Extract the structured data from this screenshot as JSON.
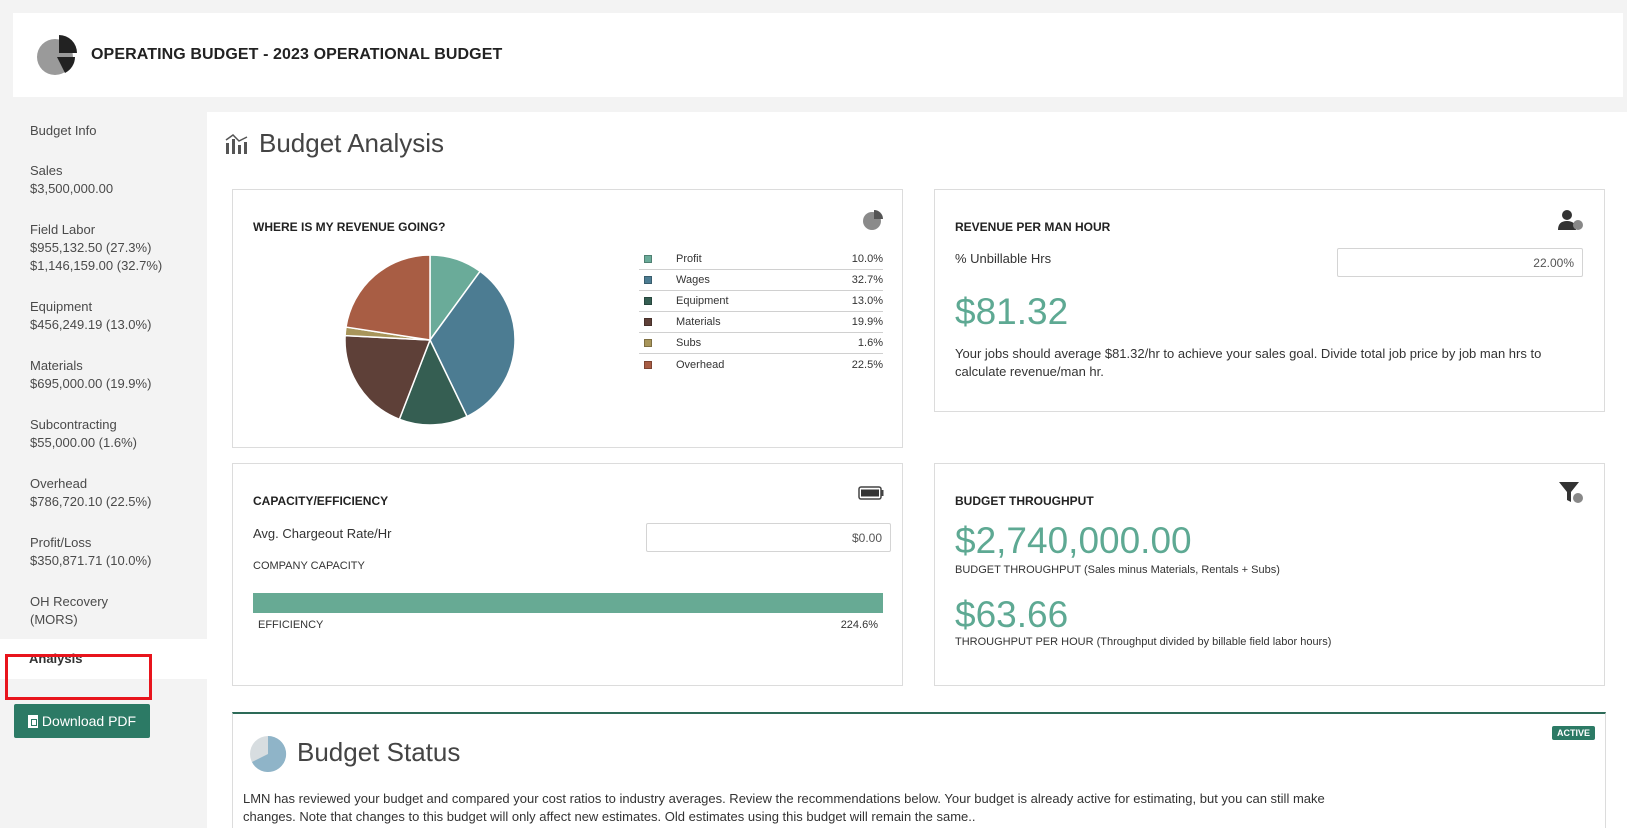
{
  "header": {
    "title": "OPERATING BUDGET - 2023 OPERATIONAL BUDGET"
  },
  "sidebar": {
    "items": [
      {
        "label": "Budget Info"
      },
      {
        "label": "Sales",
        "values": [
          "$3,500,000.00"
        ]
      },
      {
        "label": "Field Labor",
        "values": [
          "$955,132.50 (27.3%)",
          "$1,146,159.00 (32.7%)"
        ]
      },
      {
        "label": "Equipment",
        "values": [
          "$456,249.19 (13.0%)"
        ]
      },
      {
        "label": "Materials",
        "values": [
          "$695,000.00 (19.9%)"
        ]
      },
      {
        "label": "Subcontracting",
        "values": [
          "$55,000.00 (1.6%)"
        ]
      },
      {
        "label": "Overhead",
        "values": [
          "$786,720.10 (22.5%)"
        ]
      },
      {
        "label": "Profit/Loss",
        "values": [
          "$350,871.71 (10.0%)"
        ]
      },
      {
        "label": "OH Recovery",
        "values": [
          "(MORS)"
        ]
      }
    ],
    "active": "Analysis",
    "download_label": "Download PDF"
  },
  "main": {
    "title": "Budget Analysis",
    "revenue_card": {
      "title": "WHERE IS MY REVENUE GOING?",
      "legend": [
        {
          "name": "Profit",
          "pct": "10.0%",
          "color": "#6aab99"
        },
        {
          "name": "Wages",
          "pct": "32.7%",
          "color": "#4c7c92"
        },
        {
          "name": "Equipment",
          "pct": "13.0%",
          "color": "#355e52"
        },
        {
          "name": "Materials",
          "pct": "19.9%",
          "color": "#5e4038"
        },
        {
          "name": "Subs",
          "pct": "1.6%",
          "color": "#a8955a"
        },
        {
          "name": "Overhead",
          "pct": "22.5%",
          "color": "#a85d44"
        }
      ]
    },
    "rpmh_card": {
      "title": "REVENUE PER MAN HOUR",
      "unbillable_label": "% Unbillable Hrs",
      "unbillable_value": "22.00%",
      "amount": "$81.32",
      "description": "Your jobs should average $81.32/hr to achieve your sales goal. Divide total job price by job man hrs to calculate revenue/man hr."
    },
    "capacity_card": {
      "title": "CAPACITY/EFFICIENCY",
      "rate_label": "Avg. Chargeout Rate/Hr",
      "rate_value": "$0.00",
      "company_capacity": "COMPANY CAPACITY",
      "efficiency_label": "EFFICIENCY",
      "efficiency_value": "224.6%",
      "bar_fill": 1.0
    },
    "throughput_card": {
      "title": "BUDGET THROUGHPUT",
      "throughput": "$2,740,000.00",
      "throughput_caption": "BUDGET THROUGHPUT (Sales minus Materials, Rentals + Subs)",
      "per_hour": "$63.66",
      "per_hour_caption": "THROUGHPUT PER HOUR (Throughput divided by billable field labor hours)"
    },
    "status_card": {
      "badge": "ACTIVE",
      "title": "Budget Status",
      "text": "LMN has reviewed your budget and compared your cost ratios to industry averages. Review the recommendations below. Your budget is already active for estimating, but you can still make changes. Note that changes to this budget will only affect new estimates. Old estimates using this budget will remain the same.."
    }
  },
  "colors": {
    "accent": "#2c7a65",
    "number_green": "#5ea993",
    "highlight_red": "#e8141c"
  },
  "chart_data": {
    "type": "pie",
    "categories": [
      "Profit",
      "Wages",
      "Equipment",
      "Materials",
      "Subs",
      "Overhead"
    ],
    "values": [
      10.0,
      32.7,
      13.0,
      19.9,
      1.6,
      22.5
    ],
    "colors": [
      "#6aab99",
      "#4c7c92",
      "#355e52",
      "#5e4038",
      "#a8955a",
      "#a85d44"
    ],
    "title": "WHERE IS MY REVENUE GOING?"
  }
}
